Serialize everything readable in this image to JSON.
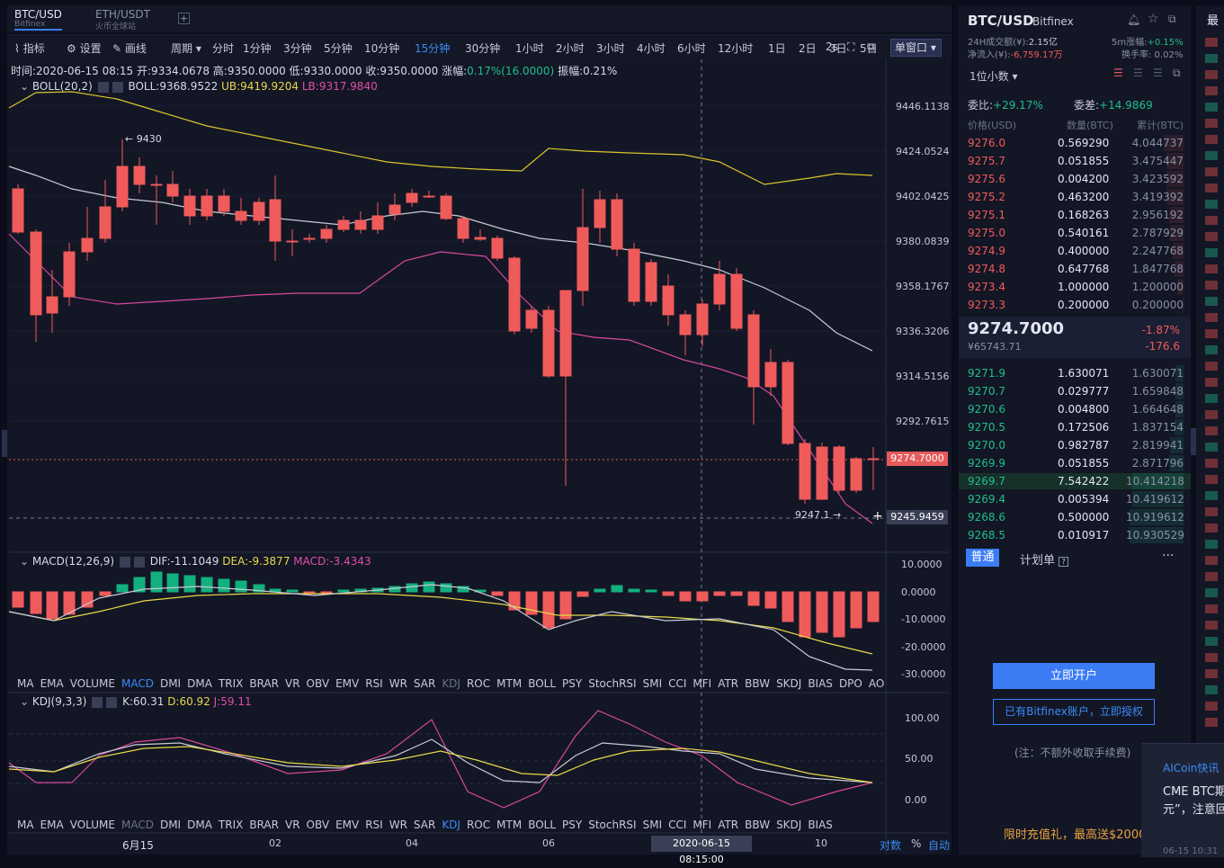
{
  "tabs": [
    {
      "label": "BTC/USD",
      "sub": "Bitfinex"
    },
    {
      "label": "ETH/USDT",
      "sub": "火币全球站"
    }
  ],
  "toolbar": {
    "indicator": "指标",
    "settings": "设置",
    "draw": "画线",
    "period": "周期",
    "timeframes": [
      "分时",
      "1分钟",
      "3分钟",
      "5分钟",
      "10分钟",
      "15分钟",
      "30分钟",
      "1小时",
      "2小时",
      "3小时",
      "4小时",
      "6小时",
      "12小时",
      "1日",
      "2日",
      "3日",
      "5日",
      "周K"
    ],
    "selected": "15分钟",
    "right": "2s",
    "window": "单窗口"
  },
  "info": {
    "time": "时间:2020-06-15 08:15",
    "open": "开:9334.0678",
    "high": "高:9350.0000",
    "low": "低:9330.0000",
    "close": "收:9350.0000",
    "change_label": "涨幅:",
    "change": "0.17%(16.0000)",
    "amp": "振幅:0.21%"
  },
  "boll": {
    "name": "BOLL(20,2)",
    "mid": "BOLL:9368.9522",
    "ub": "UB:9419.9204",
    "lb": "LB:9317.9840"
  },
  "price_axis": [
    "9446.1138",
    "9424.0524",
    "9402.0425",
    "9380.0839",
    "9358.1767",
    "9336.3206",
    "9314.5156",
    "9292.7615",
    "9245.9459"
  ],
  "annotations": {
    "high": "← 9430",
    "low": "9247.1 →",
    "current": "9274.7000"
  },
  "macd": {
    "name": "MACD(12,26,9)",
    "dif": "DIF:-11.1049",
    "dea": "DEA:-9.3877",
    "macd": "MACD:-3.4343",
    "axis": [
      "10.0000",
      "0.0000",
      "-10.0000",
      "-20.0000",
      "-30.0000"
    ]
  },
  "indicator_bar": [
    "MA",
    "EMA",
    "VOLUME",
    "MACD",
    "DMI",
    "DMA",
    "TRIX",
    "BRAR",
    "VR",
    "OBV",
    "EMV",
    "RSI",
    "WR",
    "SAR",
    "KDJ",
    "ROC",
    "MTM",
    "BOLL",
    "PSY",
    "StochRSI",
    "SMI",
    "CCI",
    "MFI",
    "ATR",
    "BBW",
    "SKDJ",
    "BIAS",
    "DPO",
    "AO"
  ],
  "indicator_bar2": [
    "MA",
    "EMA",
    "VOLUME",
    "MACD",
    "DMI",
    "DMA",
    "TRIX",
    "BRAR",
    "VR",
    "OBV",
    "EMV",
    "RSI",
    "WR",
    "SAR",
    "KDJ",
    "ROC",
    "MTM",
    "BOLL",
    "PSY",
    "StochRSI",
    "SMI",
    "CCI",
    "MFI",
    "ATR",
    "BBW",
    "SKDJ",
    "BIAS"
  ],
  "kdj": {
    "name": "KDJ(9,3,3)",
    "k": "K:60.31",
    "d": "D:60.92",
    "j": "J:59.11",
    "axis": [
      "100.00",
      "50.00",
      "0.00"
    ]
  },
  "time_axis": [
    "6月15",
    "02",
    "04",
    "06",
    "10"
  ],
  "crosshair_time": "2020-06-15 08:15:00",
  "bottom_right": [
    "对数",
    "%",
    "自动"
  ],
  "panel": {
    "pair": "BTC/USD",
    "exchange": "Bitfinex",
    "vol_label": "24H成交额(¥):",
    "vol": "2.15亿",
    "inflow_label": "净流入(¥):",
    "inflow": "-6,759.17万",
    "rise_label": "5m涨幅:",
    "rise": "+0.15%",
    "turnover": "换手率: 0.02%",
    "decimals": "1位小数",
    "ratio_label": "委比:",
    "ratio": "+29.17%",
    "diff_label": "委差:",
    "diff": "+14.9869",
    "headers": [
      "价格(USD)",
      "数量(BTC)",
      "累计(BTC)"
    ],
    "asks": [
      [
        "9276.0",
        "0.569290",
        "4.044737"
      ],
      [
        "9275.7",
        "0.051855",
        "3.475447"
      ],
      [
        "9275.6",
        "0.004200",
        "3.423592"
      ],
      [
        "9275.2",
        "0.463200",
        "3.419392"
      ],
      [
        "9275.1",
        "0.168263",
        "2.956192"
      ],
      [
        "9275.0",
        "0.540161",
        "2.787929"
      ],
      [
        "9274.9",
        "0.400000",
        "2.247768"
      ],
      [
        "9274.8",
        "0.647768",
        "1.847768"
      ],
      [
        "9273.4",
        "1.000000",
        "1.200000"
      ],
      [
        "9273.3",
        "0.200000",
        "0.200000"
      ]
    ],
    "last": "9274.7000",
    "last_cny": "¥65743.71",
    "last_pct": "-1.87%",
    "last_chg": "-176.6",
    "bids": [
      [
        "9271.9",
        "1.630071",
        "1.630071"
      ],
      [
        "9270.7",
        "0.029777",
        "1.659848"
      ],
      [
        "9270.6",
        "0.004800",
        "1.664648"
      ],
      [
        "9270.5",
        "0.172506",
        "1.837154"
      ],
      [
        "9270.0",
        "0.982787",
        "2.819941"
      ],
      [
        "9269.9",
        "0.051855",
        "2.871796"
      ],
      [
        "9269.7",
        "7.542422",
        "10.414218"
      ],
      [
        "9269.4",
        "0.005394",
        "10.419612"
      ],
      [
        "9268.6",
        "0.500000",
        "10.919612"
      ],
      [
        "9268.5",
        "0.010917",
        "10.930529"
      ]
    ],
    "tab_normal": "普通",
    "tab_plan": "计划单",
    "open_btn": "立即开户",
    "auth_btn": "已有Bitfinex账户，立即授权",
    "note": "(注：不额外收取手续费)",
    "promo": "限时充值礼，最高送$2000"
  },
  "popup": {
    "title": "AICoin快讯",
    "text": "CME BTC期",
    "text2": "元”，注意回",
    "time": "06-15 10:31"
  },
  "edge": {
    "label": "最"
  }
}
